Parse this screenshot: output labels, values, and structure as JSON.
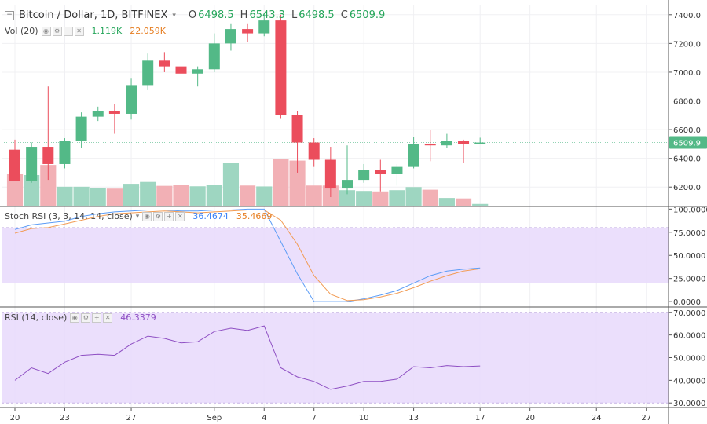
{
  "header": {
    "symbol_title": "Bitcoin / Dollar, 1D, BITFINEX",
    "ohlc": [
      {
        "label": "O",
        "value": "6498.5"
      },
      {
        "label": "H",
        "value": "6543.3"
      },
      {
        "label": "L",
        "value": "6498.5"
      },
      {
        "label": "C",
        "value": "6509.9"
      }
    ]
  },
  "volume_legend": {
    "name": "Vol (20)",
    "value1": "1.119K",
    "value2": "22.059K"
  },
  "stoch_legend": {
    "name": "Stoch RSI (3, 3, 14, 14, close)",
    "k_value": "36.4674",
    "d_value": "35.4669"
  },
  "rsi_legend": {
    "name": "RSI (14, close)",
    "value": "46.3379"
  },
  "colors": {
    "up": "#53b987",
    "down": "#eb4d5c",
    "up_vol": "#9ed6c1",
    "down_vol": "#f2b0b5",
    "stoch_k": "#5b9cf6",
    "stoch_d": "#f29b53",
    "rsi": "#8e4fc3",
    "band": "#e7d9fb"
  },
  "chart_data": [
    {
      "type": "candlestick",
      "title": "Bitcoin / Dollar, 1D, BITFINEX",
      "x_ticks": [
        "20",
        "23",
        "27",
        "Sep",
        "4",
        "7",
        "10",
        "13",
        "17",
        "20",
        "24",
        "27"
      ],
      "y_ticks": [
        "7400.0",
        "7200.0",
        "7000.0",
        "6800.0",
        "6600.0",
        "6400.0",
        "6200.0"
      ],
      "ylim": [
        6070,
        7470
      ],
      "last_price_label": "6509.9",
      "candles": [
        {
          "date": "Aug 20",
          "open": 6460,
          "high": 6530,
          "low": 6250,
          "close": 6240
        },
        {
          "date": "Aug 21",
          "open": 6240,
          "high": 6510,
          "low": 6230,
          "close": 6480
        },
        {
          "date": "Aug 22",
          "open": 6480,
          "high": 6900,
          "low": 6250,
          "close": 6360
        },
        {
          "date": "Aug 23",
          "open": 6360,
          "high": 6540,
          "low": 6330,
          "close": 6520
        },
        {
          "date": "Aug 24",
          "open": 6520,
          "high": 6720,
          "low": 6470,
          "close": 6690
        },
        {
          "date": "Aug 25",
          "open": 6690,
          "high": 6760,
          "low": 6660,
          "close": 6730
        },
        {
          "date": "Aug 26",
          "open": 6730,
          "high": 6780,
          "low": 6570,
          "close": 6710
        },
        {
          "date": "Aug 27",
          "open": 6710,
          "high": 6960,
          "low": 6670,
          "close": 6910
        },
        {
          "date": "Aug 28",
          "open": 6910,
          "high": 7130,
          "low": 6880,
          "close": 7080
        },
        {
          "date": "Aug 29",
          "open": 7080,
          "high": 7140,
          "low": 7000,
          "close": 7040
        },
        {
          "date": "Aug 30",
          "open": 7040,
          "high": 7060,
          "low": 6810,
          "close": 6990
        },
        {
          "date": "Aug 31",
          "open": 6990,
          "high": 7040,
          "low": 6900,
          "close": 7020
        },
        {
          "date": "Sep 1",
          "open": 7020,
          "high": 7270,
          "low": 7000,
          "close": 7200
        },
        {
          "date": "Sep 2",
          "open": 7200,
          "high": 7340,
          "low": 7150,
          "close": 7300
        },
        {
          "date": "Sep 3",
          "open": 7300,
          "high": 7340,
          "low": 7210,
          "close": 7270
        },
        {
          "date": "Sep 4",
          "open": 7270,
          "high": 7410,
          "low": 7250,
          "close": 7360
        },
        {
          "date": "Sep 5",
          "open": 7360,
          "high": 7400,
          "low": 6680,
          "close": 6700
        },
        {
          "date": "Sep 6",
          "open": 6700,
          "high": 6730,
          "low": 6300,
          "close": 6510
        },
        {
          "date": "Sep 7",
          "open": 6510,
          "high": 6540,
          "low": 6340,
          "close": 6390
        },
        {
          "date": "Sep 8",
          "open": 6390,
          "high": 6480,
          "low": 6130,
          "close": 6190
        },
        {
          "date": "Sep 9",
          "open": 6190,
          "high": 6490,
          "low": 6150,
          "close": 6250
        },
        {
          "date": "Sep 10",
          "open": 6250,
          "high": 6360,
          "low": 6230,
          "close": 6320
        },
        {
          "date": "Sep 11",
          "open": 6320,
          "high": 6390,
          "low": 6170,
          "close": 6290
        },
        {
          "date": "Sep 12",
          "open": 6290,
          "high": 6360,
          "low": 6210,
          "close": 6340
        },
        {
          "date": "Sep 13",
          "open": 6340,
          "high": 6550,
          "low": 6330,
          "close": 6500
        },
        {
          "date": "Sep 14",
          "open": 6500,
          "high": 6600,
          "low": 6380,
          "close": 6490
        },
        {
          "date": "Sep 15",
          "open": 6490,
          "high": 6570,
          "low": 6470,
          "close": 6520
        },
        {
          "date": "Sep 16",
          "open": 6520,
          "high": 6530,
          "low": 6370,
          "close": 6500
        },
        {
          "date": "Sep 17",
          "open": 6498.5,
          "high": 6543.3,
          "low": 6498.5,
          "close": 6509.9
        }
      ]
    },
    {
      "type": "bar",
      "title": "Vol (20)",
      "values": [
        20.5,
        19.7,
        26.2,
        12.2,
        12.2,
        11.6,
        11.0,
        14.1,
        15.3,
        12.8,
        13.4,
        12.5,
        13.2,
        27.3,
        13.0,
        12.4,
        30.3,
        29.0,
        13.0,
        13.0,
        10.0,
        9.5,
        9.2,
        10.0,
        12.0,
        10.3,
        5.0,
        4.7,
        1.119
      ]
    },
    {
      "type": "line",
      "title": "Stoch RSI (3, 3, 14, 14, close)",
      "y_ticks": [
        "100.0000",
        "75.0000",
        "50.0000",
        "25.0000",
        "0.0000"
      ],
      "ylim": [
        -5,
        102
      ],
      "band": [
        20,
        80
      ],
      "series": [
        {
          "name": "%K",
          "values": [
            78,
            83,
            85,
            87,
            92,
            95,
            97,
            98,
            99,
            99,
            98,
            98,
            99,
            99,
            100,
            100,
            65,
            30,
            0,
            0,
            0,
            3,
            7,
            12,
            20,
            28,
            33,
            35,
            36.4674
          ]
        },
        {
          "name": "%D",
          "values": [
            74,
            79,
            80,
            84,
            88,
            92,
            95,
            96,
            97,
            98,
            97,
            96,
            97,
            98,
            99,
            99,
            88,
            62,
            28,
            8,
            1,
            2,
            5,
            9,
            15,
            22,
            28,
            33,
            35.4669
          ]
        }
      ]
    },
    {
      "type": "line",
      "title": "RSI (14, close)",
      "y_ticks": [
        "70.0000",
        "60.0000",
        "50.0000",
        "40.0000",
        "30.0000"
      ],
      "ylim": [
        28,
        72
      ],
      "band": [
        30,
        70
      ],
      "series": [
        {
          "name": "RSI",
          "values": [
            40,
            45.5,
            43,
            48,
            51,
            51.5,
            51,
            56,
            59.5,
            58.5,
            56.5,
            57,
            61.5,
            63,
            62,
            64,
            45.5,
            41.5,
            39.5,
            36,
            37.5,
            39.5,
            39.5,
            40.5,
            46,
            45.5,
            46.5,
            46,
            46.3379
          ]
        }
      ]
    }
  ]
}
